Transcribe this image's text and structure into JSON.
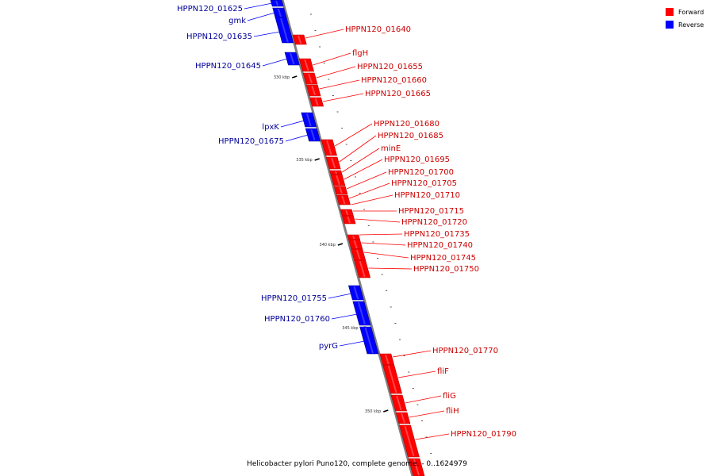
{
  "caption": "Helicobacter pylori Puno120, complete genome. - 0..1624979",
  "legend": [
    {
      "label": "Forward",
      "color": "#ff0000"
    },
    {
      "label": "Reverse",
      "color": "#0000ff"
    }
  ],
  "colors": {
    "forward": "#ff0000",
    "reverse": "#0000ff",
    "axis": "#808080",
    "forward_label": "#cc0000",
    "reverse_label": "#000099"
  },
  "ticks": [
    {
      "kbp": 330,
      "label": "330 kbp"
    },
    {
      "kbp": 335,
      "label": "335 kbp"
    },
    {
      "kbp": 340,
      "label": "340 kbp"
    },
    {
      "kbp": 345,
      "label": "345 kbp"
    },
    {
      "kbp": 350,
      "label": "350 kbp"
    }
  ],
  "genes": {
    "reverse": [
      "HPPN120_01625",
      "gmk",
      "HPPN120_01635",
      "HPPN120_01645",
      "lpxK",
      "HPPN120_01675",
      "HPPN120_01755",
      "HPPN120_01760",
      "pyrG"
    ],
    "forward": [
      "HPPN120_01640",
      "flgH",
      "HPPN120_01655",
      "HPPN120_01660",
      "HPPN120_01665",
      "HPPN120_01680",
      "HPPN120_01685",
      "minE",
      "HPPN120_01695",
      "HPPN120_01700",
      "HPPN120_01705",
      "HPPN120_01710",
      "HPPN120_01715",
      "HPPN120_01720",
      "HPPN120_01735",
      "HPPN120_01740",
      "HPPN120_01745",
      "HPPN120_01750",
      "HPPN120_01770",
      "fliF",
      "fliG",
      "fliH",
      "HPPN120_01790"
    ]
  }
}
